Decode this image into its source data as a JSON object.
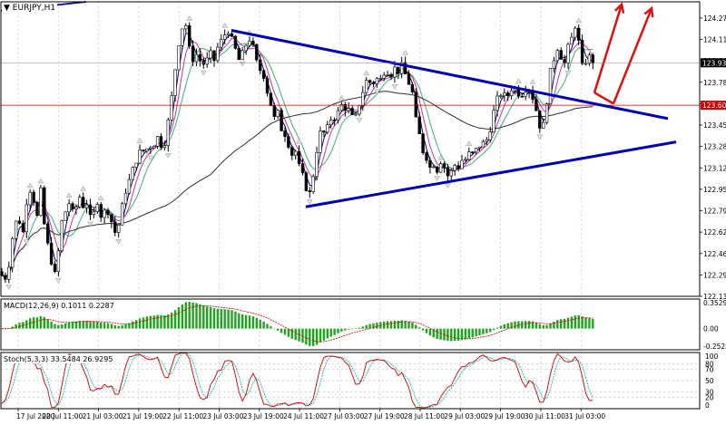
{
  "symbol_title": "EURJPY,H1",
  "macd_label": "MACD(12,26,9) 0.1011 0.2287",
  "stoch_label": "Stoch(5,3,3) 33.5484 26.9295",
  "current_price": "123.930",
  "marked_price": "123.603",
  "colors": {
    "trendline": "#0000b0",
    "candles": "#000000",
    "ma_fast": "#000080",
    "ma_medium": "#cc3399",
    "ma_slow": "#3cb371",
    "ma_long": "#303030",
    "horizontal": "#cc0000",
    "arrows": "#e01010",
    "macd_hist": "#1fa51f",
    "macd_signal": "#cc0000",
    "stoch_main": "#cc0000",
    "stoch_signal": "#20b2aa",
    "grid": "#c8c8c8"
  },
  "chart_data": {
    "type": "candlestick",
    "symbol": "EURJPY",
    "timeframe": "H1",
    "ylim": [
      122.13,
      124.4
    ],
    "y_ticks": [
      "124.275",
      "124.110",
      "123.945",
      "123.780",
      "123.615",
      "123.450",
      "123.285",
      "123.120",
      "122.955",
      "122.790",
      "122.625",
      "122.460",
      "122.295",
      "122.130"
    ],
    "x_ticks": [
      "17 Jul 2020",
      "20 Jul 11:00",
      "21 Jul 03:00",
      "21 Jul 19:00",
      "22 Jul 11:00",
      "23 Jul 03:00",
      "23 Jul 19:00",
      "24 Jul 11:00",
      "27 Jul 03:00",
      "27 Jul 19:00",
      "28 Jul 11:00",
      "29 Jul 03:00",
      "29 Jul 19:00",
      "30 Jul 11:00",
      "31 Jul 03:00"
    ],
    "close_path": [
      [
        0,
        122.32
      ],
      [
        5,
        122.25
      ],
      [
        10,
        122.38
      ],
      [
        15,
        122.65
      ],
      [
        20,
        122.75
      ],
      [
        25,
        122.6
      ],
      [
        30,
        122.9
      ],
      [
        35,
        122.98
      ],
      [
        38,
        122.82
      ],
      [
        42,
        122.72
      ],
      [
        45,
        122.95
      ],
      [
        48,
        122.72
      ],
      [
        52,
        122.55
      ],
      [
        56,
        122.42
      ],
      [
        60,
        122.28
      ],
      [
        64,
        122.45
      ],
      [
        68,
        122.7
      ],
      [
        72,
        122.78
      ],
      [
        76,
        122.85
      ],
      [
        80,
        122.78
      ],
      [
        84,
        122.82
      ],
      [
        88,
        122.9
      ],
      [
        92,
        122.82
      ],
      [
        96,
        122.85
      ],
      [
        100,
        122.72
      ],
      [
        104,
        122.78
      ],
      [
        108,
        122.88
      ],
      [
        112,
        122.72
      ],
      [
        116,
        122.8
      ],
      [
        120,
        122.78
      ],
      [
        124,
        122.68
      ],
      [
        128,
        122.6
      ],
      [
        132,
        122.72
      ],
      [
        136,
        122.88
      ],
      [
        140,
        122.98
      ],
      [
        144,
        123.05
      ],
      [
        148,
        123.15
      ],
      [
        152,
        123.2
      ],
      [
        156,
        123.28
      ],
      [
        160,
        123.22
      ],
      [
        164,
        123.32
      ],
      [
        168,
        123.25
      ],
      [
        172,
        123.38
      ],
      [
        176,
        123.32
      ],
      [
        180,
        123.26
      ],
      [
        184,
        123.42
      ],
      [
        188,
        123.6
      ],
      [
        192,
        123.82
      ],
      [
        196,
        124.05
      ],
      [
        200,
        124.18
      ],
      [
        203,
        124.25
      ],
      [
        206,
        124.2
      ],
      [
        209,
        124.02
      ],
      [
        212,
        123.95
      ],
      [
        216,
        124.0
      ],
      [
        220,
        123.95
      ],
      [
        224,
        123.92
      ],
      [
        228,
        123.95
      ],
      [
        232,
        124.0
      ],
      [
        236,
        123.95
      ],
      [
        240,
        124.05
      ],
      [
        244,
        124.1
      ],
      [
        248,
        124.15
      ],
      [
        252,
        124.18
      ],
      [
        256,
        124.1
      ],
      [
        260,
        124.02
      ],
      [
        263,
        123.95
      ],
      [
        266,
        123.98
      ],
      [
        270,
        124.05
      ],
      [
        274,
        124.12
      ],
      [
        278,
        124.08
      ],
      [
        282,
        123.95
      ],
      [
        286,
        123.88
      ],
      [
        290,
        123.85
      ],
      [
        294,
        123.72
      ],
      [
        298,
        123.62
      ],
      [
        302,
        123.5
      ],
      [
        306,
        123.55
      ],
      [
        310,
        123.42
      ],
      [
        314,
        123.38
      ],
      [
        318,
        123.3
      ],
      [
        322,
        123.22
      ],
      [
        326,
        123.25
      ],
      [
        330,
        123.12
      ],
      [
        334,
        123.05
      ],
      [
        338,
        122.95
      ],
      [
        342,
        122.92
      ],
      [
        346,
        123.1
      ],
      [
        350,
        123.3
      ],
      [
        354,
        123.42
      ],
      [
        358,
        123.38
      ],
      [
        362,
        123.45
      ],
      [
        366,
        123.52
      ],
      [
        370,
        123.5
      ],
      [
        374,
        123.58
      ],
      [
        378,
        123.62
      ],
      [
        382,
        123.55
      ],
      [
        386,
        123.58
      ],
      [
        390,
        123.45
      ],
      [
        394,
        123.58
      ],
      [
        398,
        123.65
      ],
      [
        402,
        123.78
      ],
      [
        406,
        123.8
      ],
      [
        410,
        123.75
      ],
      [
        414,
        123.82
      ],
      [
        418,
        123.78
      ],
      [
        422,
        123.85
      ],
      [
        426,
        123.88
      ],
      [
        430,
        123.82
      ],
      [
        434,
        123.9
      ],
      [
        438,
        123.85
      ],
      [
        442,
        123.92
      ],
      [
        446,
        123.85
      ],
      [
        450,
        123.78
      ],
      [
        454,
        123.72
      ],
      [
        458,
        123.5
      ],
      [
        462,
        123.38
      ],
      [
        466,
        123.25
      ],
      [
        470,
        123.2
      ],
      [
        474,
        123.12
      ],
      [
        478,
        123.15
      ],
      [
        482,
        123.1
      ],
      [
        486,
        123.18
      ],
      [
        490,
        123.12
      ],
      [
        494,
        123.05
      ],
      [
        498,
        123.1
      ],
      [
        502,
        123.15
      ],
      [
        506,
        123.12
      ],
      [
        510,
        123.2
      ],
      [
        514,
        123.18
      ],
      [
        518,
        123.25
      ],
      [
        522,
        123.22
      ],
      [
        526,
        123.28
      ],
      [
        530,
        123.3
      ],
      [
        534,
        123.32
      ],
      [
        538,
        123.35
      ],
      [
        542,
        123.48
      ],
      [
        546,
        123.62
      ],
      [
        550,
        123.68
      ],
      [
        554,
        123.7
      ],
      [
        558,
        123.65
      ],
      [
        562,
        123.72
      ],
      [
        566,
        123.75
      ],
      [
        570,
        123.7
      ],
      [
        574,
        123.68
      ],
      [
        578,
        123.72
      ],
      [
        582,
        123.75
      ],
      [
        586,
        123.68
      ],
      [
        590,
        123.6
      ],
      [
        594,
        123.45
      ],
      [
        598,
        123.42
      ],
      [
        602,
        123.6
      ],
      [
        606,
        123.85
      ],
      [
        610,
        123.95
      ],
      [
        614,
        124.05
      ],
      [
        618,
        123.98
      ],
      [
        622,
        123.92
      ],
      [
        626,
        124.05
      ],
      [
        630,
        124.12
      ],
      [
        634,
        124.22
      ],
      [
        638,
        124.08
      ],
      [
        642,
        123.88
      ],
      [
        646,
        123.95
      ],
      [
        650,
        123.98
      ],
      [
        654,
        123.93
      ]
    ],
    "trendlines": [
      {
        "from": [
          1,
          124.33
        ],
        "to": [
          95,
          124.4
        ]
      },
      {
        "from": [
          255,
          124.18
        ],
        "to": [
          736,
          123.5
        ]
      },
      {
        "from": [
          337,
          122.82
        ],
        "to": [
          745,
          123.32
        ]
      }
    ],
    "horizontal_level": 123.603,
    "projection_arrows": [
      {
        "from": [
          655,
          123.7
        ],
        "to": [
          685,
          124.38
        ]
      },
      {
        "from": [
          676,
          123.615
        ],
        "to": [
          718,
          124.35
        ]
      }
    ],
    "macd": {
      "label": "MACD(12,26,9) 0.1011 0.2287",
      "ylim": [
        -0.2522,
        0.3529
      ],
      "y_ticks": [
        "0.3529",
        "0.00",
        "-0.2522"
      ]
    },
    "stochastic": {
      "label": "Stoch(5,3,3) 33.5484 26.9295",
      "ylim": [
        0,
        100
      ],
      "levels": [
        20,
        30,
        50,
        70,
        80
      ],
      "y_ticks": [
        "100",
        "80",
        "70",
        "50",
        "30",
        "20",
        "0"
      ]
    }
  }
}
